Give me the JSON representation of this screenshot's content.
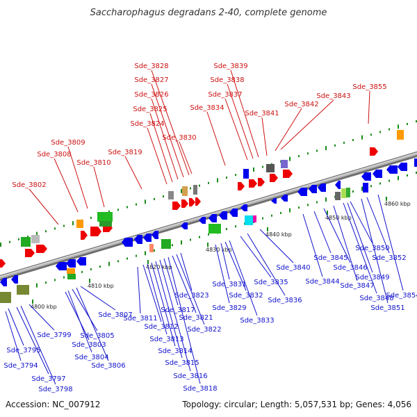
{
  "title": "Saccharophagus degradans 2-40, complete genome",
  "accession_label": "Accession: NC_007912",
  "genome_info": "Topology: circular; Length: 5,057,531 bp; Genes: 4,056",
  "colors": {
    "upper_label": "#cc1111",
    "lower_label": "#1111cc",
    "backbone": "#9a9a9a",
    "tick_green": "#1a8a1a",
    "gene_blue": "#0000ee",
    "gene_red": "#ee0000"
  },
  "ticks": [
    "4800 kbp",
    "4810 kbp",
    "4820 kbp",
    "4830 kbp",
    "4840 kbp",
    "4850 kbp",
    "4860 kbp"
  ],
  "upper_labels": [
    "Sde_3802",
    "Sde_3808",
    "Sde_3809",
    "Sde_3810",
    "Sde_3819",
    "Sde_3824",
    "Sde_3825",
    "Sde_3826",
    "Sde_3827",
    "Sde_3828",
    "Sde_3830",
    "Sde_3834",
    "Sde_3837",
    "Sde_3838",
    "Sde_3839",
    "Sde_3841",
    "Sde_3842",
    "Sde_3843",
    "Sde_3855"
  ],
  "lower_labels": [
    "Sde_3794",
    "Sde_3795",
    "Sde_3797",
    "Sde_3798",
    "Sde_3799",
    "Sde_3803",
    "Sde_3804",
    "Sde_3805",
    "Sde_3806",
    "Sde_3807",
    "Sde_3811",
    "Sde_3812",
    "Sde_3813",
    "Sde_3814",
    "Sde_3815",
    "Sde_3816",
    "Sde_3817",
    "Sde_3818",
    "Sde_3821",
    "Sde_3822",
    "Sde_3823",
    "Sde_3829",
    "Sde_3831",
    "Sde_3832",
    "Sde_3833",
    "Sde_3835",
    "Sde_3836",
    "Sde_3840",
    "Sde_3844",
    "Sde_3845",
    "Sde_3846",
    "Sde_3847",
    "Sde_3848",
    "Sde_3849",
    "Sde_3850",
    "Sde_3851",
    "Sde_3852",
    "Sde_3854"
  ]
}
